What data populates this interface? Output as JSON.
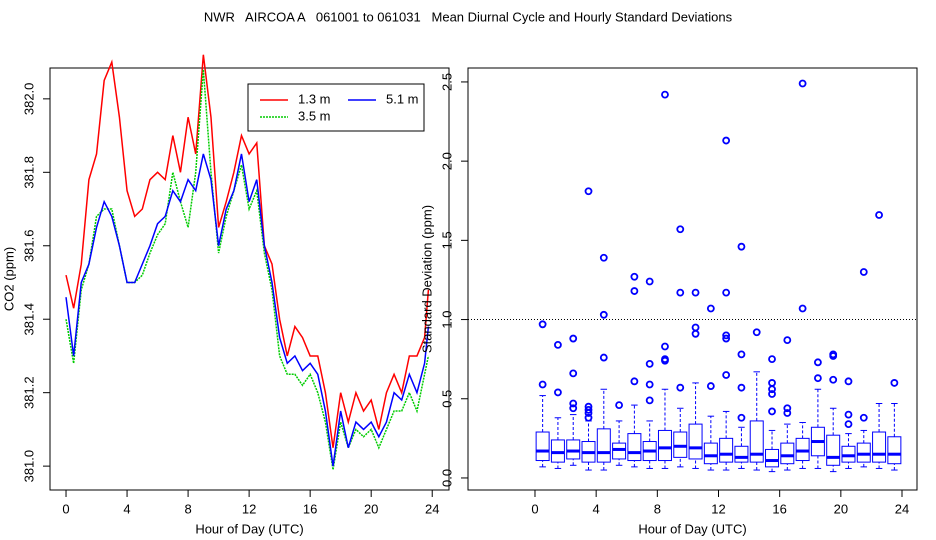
{
  "title": "NWR   AIRCOA A   061001 to 061031   Mean Diurnal Cycle and Hourly Standard Deviations",
  "chart_data": [
    {
      "type": "line",
      "xlabel": "Hour of Day (UTC)",
      "ylabel": "CO2 (ppm)",
      "xlim": [
        -1.05,
        25.1
      ],
      "ylim": [
        380.935,
        382.084
      ],
      "xticks": [
        0,
        4,
        8,
        12,
        16,
        20,
        24
      ],
      "yticks": [
        {
          "value": 381,
          "label": "381.0"
        },
        381.2,
        381.4,
        381.6,
        381.8,
        {
          "value": 382,
          "label": "382.0"
        }
      ],
      "legend": "top-right",
      "x": [
        0,
        0.5,
        1,
        1.5,
        2,
        2.5,
        3,
        3.5,
        4,
        4.5,
        5,
        5.5,
        6,
        6.5,
        7,
        7.5,
        8,
        8.5,
        9,
        9.5,
        10,
        10.5,
        11,
        11.5,
        12,
        12.5,
        13,
        13.5,
        14,
        14.5,
        15,
        15.5,
        16,
        16.5,
        17,
        17.5,
        18,
        18.5,
        19,
        19.5,
        20,
        20.5,
        21,
        21.5,
        22,
        22.5,
        23,
        23.5,
        23.75
      ],
      "series": [
        {
          "name": "1.3 m",
          "color": "#ff0000",
          "values": [
            381.52,
            381.43,
            381.55,
            381.78,
            381.85,
            382.05,
            382.1,
            381.95,
            381.75,
            381.68,
            381.7,
            381.78,
            381.8,
            381.78,
            381.9,
            381.8,
            381.95,
            381.85,
            382.12,
            381.95,
            381.65,
            381.72,
            381.8,
            381.9,
            381.85,
            381.88,
            381.6,
            381.55,
            381.4,
            381.3,
            381.38,
            381.35,
            381.3,
            381.3,
            381.2,
            381.05,
            381.2,
            381.12,
            381.2,
            381.15,
            381.18,
            381.1,
            381.2,
            381.25,
            381.2,
            381.3,
            381.3,
            381.35,
            381.48
          ]
        },
        {
          "name": "3.5 m",
          "color": "#00cc00",
          "dashed": true,
          "values": [
            381.4,
            381.28,
            381.48,
            381.55,
            381.68,
            381.7,
            381.7,
            381.6,
            381.5,
            381.5,
            381.52,
            381.58,
            381.63,
            381.66,
            381.8,
            381.72,
            381.65,
            381.8,
            382.08,
            381.8,
            381.58,
            381.68,
            381.75,
            381.82,
            381.7,
            381.75,
            381.58,
            381.48,
            381.3,
            381.25,
            381.25,
            381.22,
            381.25,
            381.2,
            381.12,
            380.99,
            381.12,
            381.05,
            381.1,
            381.08,
            381.1,
            381.05,
            381.1,
            381.15,
            381.15,
            381.2,
            381.15,
            381.25,
            381.3
          ]
        },
        {
          "name": "5.1 m",
          "color": "#0000ff",
          "values": [
            381.46,
            381.3,
            381.5,
            381.55,
            381.65,
            381.72,
            381.68,
            381.6,
            381.5,
            381.5,
            381.55,
            381.6,
            381.66,
            381.68,
            381.75,
            381.72,
            381.78,
            381.75,
            381.85,
            381.78,
            381.6,
            381.7,
            381.75,
            381.85,
            381.72,
            381.78,
            381.6,
            381.5,
            381.35,
            381.28,
            381.3,
            381.26,
            381.28,
            381.25,
            381.15,
            381.0,
            381.15,
            381.05,
            381.12,
            381.1,
            381.12,
            381.08,
            381.12,
            381.2,
            381.18,
            381.25,
            381.2,
            381.28,
            381.38
          ]
        }
      ]
    },
    {
      "type": "box",
      "xlabel": "Hour of Day (UTC)",
      "ylabel": "Standard Deviation (ppm)",
      "xlim": [
        -4.38,
        24.98
      ],
      "ylim": [
        -0.076,
        2.588
      ],
      "xticks": [
        0,
        4,
        8,
        12,
        16,
        20,
        24
      ],
      "yticks": [
        {
          "value": 0,
          "label": "0.0"
        },
        0.5,
        {
          "value": 1,
          "label": "1.0"
        },
        1.5,
        {
          "value": 2,
          "label": "2.0"
        },
        2.5
      ],
      "hline": 1,
      "color": "#0000ff",
      "x": [
        0.5,
        1.5,
        2.5,
        3.5,
        4.5,
        5.5,
        6.5,
        7.5,
        8.5,
        9.5,
        10.5,
        11.5,
        12.5,
        13.5,
        14.5,
        15.5,
        16.5,
        17.5,
        18.5,
        19.5,
        20.5,
        21.5,
        22.5,
        23.5
      ],
      "boxes": [
        {
          "low": 0.07,
          "q1": 0.11,
          "median": 0.17,
          "q3": 0.29,
          "high": 0.52,
          "outliers": [
            0.59,
            0.97
          ]
        },
        {
          "low": 0.06,
          "q1": 0.1,
          "median": 0.16,
          "q3": 0.24,
          "high": 0.38,
          "outliers": [
            0.54,
            0.84
          ]
        },
        {
          "low": 0.08,
          "q1": 0.12,
          "median": 0.17,
          "q3": 0.24,
          "high": 0.4,
          "outliers": [
            0.44,
            0.47,
            0.66,
            0.88
          ]
        },
        {
          "low": 0.05,
          "q1": 0.1,
          "median": 0.16,
          "q3": 0.23,
          "high": 0.36,
          "outliers": [
            0.38,
            0.41,
            0.43,
            0.45,
            1.81
          ]
        },
        {
          "low": 0.05,
          "q1": 0.1,
          "median": 0.16,
          "q3": 0.31,
          "high": 0.56,
          "outliers": [
            0.76,
            1.03,
            1.39
          ]
        },
        {
          "low": 0.08,
          "q1": 0.12,
          "median": 0.18,
          "q3": 0.22,
          "high": 0.36,
          "outliers": [
            0.46
          ]
        },
        {
          "low": 0.07,
          "q1": 0.11,
          "median": 0.16,
          "q3": 0.28,
          "high": 0.46,
          "outliers": [
            0.61,
            1.18,
            1.27
          ]
        },
        {
          "low": 0.06,
          "q1": 0.11,
          "median": 0.17,
          "q3": 0.23,
          "high": 0.36,
          "outliers": [
            0.49,
            0.59,
            0.72,
            1.24
          ]
        },
        {
          "low": 0.06,
          "q1": 0.11,
          "median": 0.19,
          "q3": 0.3,
          "high": 0.56,
          "outliers": [
            0.74,
            0.75,
            0.83,
            2.42
          ]
        },
        {
          "low": 0.07,
          "q1": 0.13,
          "median": 0.2,
          "q3": 0.29,
          "high": 0.44,
          "outliers": [
            0.57,
            1.17,
            1.57
          ]
        },
        {
          "low": 0.06,
          "q1": 0.12,
          "median": 0.19,
          "q3": 0.34,
          "high": 0.6,
          "outliers": [
            0.91,
            0.95,
            1.17
          ]
        },
        {
          "low": 0.05,
          "q1": 0.09,
          "median": 0.14,
          "q3": 0.22,
          "high": 0.39,
          "outliers": [
            0.58,
            1.07
          ]
        },
        {
          "low": 0.05,
          "q1": 0.1,
          "median": 0.15,
          "q3": 0.25,
          "high": 0.42,
          "outliers": [
            0.65,
            0.88,
            0.9,
            1.17,
            2.13
          ]
        },
        {
          "low": 0.06,
          "q1": 0.1,
          "median": 0.13,
          "q3": 0.2,
          "high": 0.32,
          "outliers": [
            0.38,
            0.57,
            0.78,
            1.46
          ]
        },
        {
          "low": 0.05,
          "q1": 0.1,
          "median": 0.15,
          "q3": 0.36,
          "high": 0.67,
          "outliers": [
            0.92
          ]
        },
        {
          "low": 0.04,
          "q1": 0.07,
          "median": 0.11,
          "q3": 0.18,
          "high": 0.3,
          "outliers": [
            0.42,
            0.53,
            0.56,
            0.6,
            0.75
          ]
        },
        {
          "low": 0.05,
          "q1": 0.09,
          "median": 0.14,
          "q3": 0.22,
          "high": 0.34,
          "outliers": [
            0.41,
            0.44,
            0.87
          ]
        },
        {
          "low": 0.06,
          "q1": 0.11,
          "median": 0.17,
          "q3": 0.25,
          "high": 0.35,
          "outliers": [
            1.07,
            2.49
          ]
        },
        {
          "low": 0.06,
          "q1": 0.14,
          "median": 0.23,
          "q3": 0.32,
          "high": 0.56,
          "outliers": [
            0.63,
            0.73
          ]
        },
        {
          "low": 0.04,
          "q1": 0.08,
          "median": 0.13,
          "q3": 0.27,
          "high": 0.44,
          "outliers": [
            0.62,
            0.77,
            0.78
          ]
        },
        {
          "low": 0.06,
          "q1": 0.1,
          "median": 0.14,
          "q3": 0.2,
          "high": 0.28,
          "outliers": [
            0.34,
            0.4,
            0.61
          ]
        },
        {
          "low": 0.07,
          "q1": 0.1,
          "median": 0.15,
          "q3": 0.22,
          "high": 0.3,
          "outliers": [
            0.38,
            1.3
          ]
        },
        {
          "low": 0.06,
          "q1": 0.1,
          "median": 0.15,
          "q3": 0.29,
          "high": 0.47,
          "outliers": [
            1.66
          ]
        },
        {
          "low": 0.05,
          "q1": 0.09,
          "median": 0.15,
          "q3": 0.26,
          "high": 0.47,
          "outliers": [
            0.6
          ]
        }
      ]
    }
  ]
}
